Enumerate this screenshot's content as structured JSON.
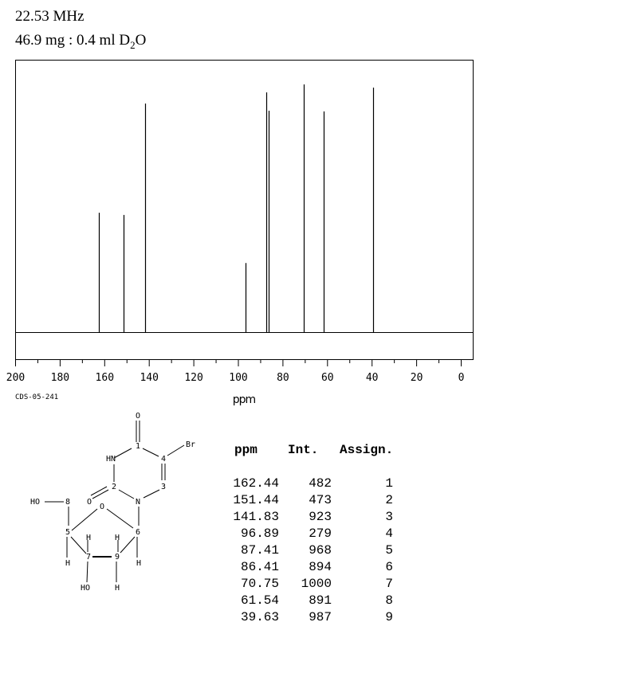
{
  "header": {
    "frequency": "22.53 MHz",
    "sample_prefix": "46.9 mg : 0.4 ml D",
    "sample_subscript": "2",
    "sample_suffix": "O"
  },
  "chart_data": {
    "type": "bar",
    "title": "",
    "xlabel": "ppm",
    "ylabel": "",
    "xlim": [
      200,
      0
    ],
    "ylim": [
      0,
      1000
    ],
    "x_ticks": [
      200,
      180,
      160,
      140,
      120,
      100,
      80,
      60,
      40,
      20,
      0
    ],
    "grid": false,
    "peaks": [
      {
        "ppm": 162.44,
        "intensity": 482
      },
      {
        "ppm": 151.44,
        "intensity": 473
      },
      {
        "ppm": 141.83,
        "intensity": 923
      },
      {
        "ppm": 96.89,
        "intensity": 279
      },
      {
        "ppm": 87.41,
        "intensity": 968
      },
      {
        "ppm": 86.41,
        "intensity": 894
      },
      {
        "ppm": 70.75,
        "intensity": 1000
      },
      {
        "ppm": 61.54,
        "intensity": 891
      },
      {
        "ppm": 39.63,
        "intensity": 987
      }
    ]
  },
  "spectrum_code": "CDS-05-241",
  "table": {
    "headers": [
      "ppm",
      "Int.",
      "Assign."
    ],
    "rows": [
      [
        "162.44",
        "482",
        "1"
      ],
      [
        "151.44",
        "473",
        "2"
      ],
      [
        "141.83",
        "923",
        "3"
      ],
      [
        "96.89",
        "279",
        "4"
      ],
      [
        "87.41",
        "968",
        "5"
      ],
      [
        "86.41",
        "894",
        "6"
      ],
      [
        "70.75",
        "1000",
        "7"
      ],
      [
        "61.54",
        "891",
        "8"
      ],
      [
        "39.63",
        "987",
        "9"
      ]
    ]
  },
  "structure": {
    "atoms": [
      "O",
      "1",
      "Br",
      "4",
      "HN",
      "3",
      "2",
      "O",
      "N",
      "HO",
      "8",
      "O",
      "5",
      "H",
      "7",
      "H",
      "6",
      "9",
      "H",
      "HO",
      "H",
      "H"
    ]
  }
}
